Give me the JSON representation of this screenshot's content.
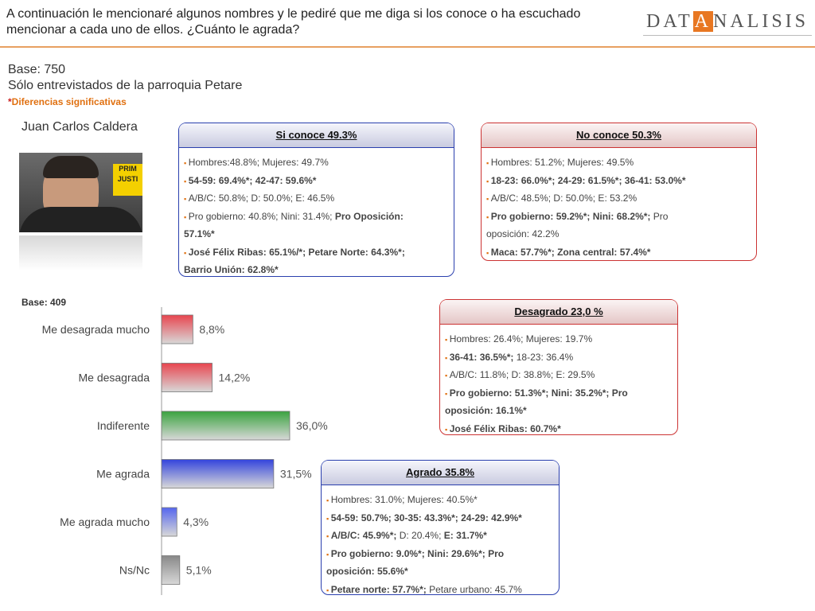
{
  "header": {
    "question": "A continuación le mencionaré algunos nombres y le pediré que me diga si los conoce o ha escuchado mencionar a cada uno de ellos. ¿Cuánto le agrada?",
    "logo_pre": "DAT",
    "logo_hl": "A",
    "logo_post": "NALISIS"
  },
  "base_info": {
    "base": "Base: 750",
    "scope": "Sólo entrevistados de la parroquia Petare",
    "note_star": "*",
    "note": "Diferencias significativas"
  },
  "person": {
    "name": "Juan Carlos Caldera",
    "sign_text": "PRIM JUSTI"
  },
  "boxes": {
    "si_conoce": {
      "title": "Si conoce 49.3%",
      "l1": "Hombres:48.8%; Mujeres: 49.7%",
      "l2": "54-59: 69.4%*; 42-47: 59.6%*",
      "l3": "A/B/C: 50.8%; D: 50.0%; E: 46.5%",
      "l4a": "Pro gobierno: 40.8%; Nini: 31.4%; ",
      "l4b": "Pro Oposición:",
      "l5": "57.1%*",
      "l6": "José Félix Ribas: 65.1%/*; Petare Norte: 64.3%*;",
      "l7": "Barrio Unión: 62.8%*"
    },
    "no_conoce": {
      "title": "No conoce 50.3%",
      "l1": "Hombres: 51.2%; Mujeres: 49.5%",
      "l2": "18-23: 66.0%*; 24-29: 61.5%*; 36-41: 53.0%*",
      "l3": "A/B/C: 48.5%; D: 50.0%; E: 53.2%",
      "l4a": "Pro gobierno: 59.2%*; Nini: 68.2%*;",
      "l4b": " Pro",
      "l5": "oposición: 42.2%",
      "l6": "Maca: 57.7%*; Zona central: 57.4%*"
    },
    "desagrado": {
      "title": "Desagrado 23,0 %",
      "l1": "Hombres: 26.4%; Mujeres: 19.7%",
      "l2a": "36-41: 36.5%*;",
      "l2b": " 18-23: 36.4%",
      "l3": "A/B/C: 11.8%; D: 38.8%; E: 29.5%",
      "l4": "Pro gobierno: 51.3%*; Nini: 35.2%*; Pro",
      "l5": "oposición: 16.1%*",
      "l6": "José Félix Ribas: 60.7%*"
    },
    "agrado": {
      "title": "Agrado 35.8%",
      "l1": "Hombres: 31.0%; Mujeres: 40.5%*",
      "l2": "54-59: 50.7%; 30-35: 43.3%*; 24-29: 42.9%*",
      "l3a": "A/B/C: 45.9%*;",
      "l3b": " D: 20.4%; ",
      "l3c": "E: 31.7%*",
      "l4": "Pro gobierno: 9.0%*; Nini: 29.6%*; Pro",
      "l5": "oposición: 55.6%*",
      "l6a": "Petare norte: 57.7%*;",
      "l6b": " Petare urbano: 45.7%"
    }
  },
  "chart_data": {
    "type": "bar",
    "orientation": "horizontal",
    "base_label": "Base: 409",
    "categories": [
      "Me desagrada mucho",
      "Me desagrada",
      "Indiferente",
      "Me agrada",
      "Me agrada mucho",
      "Ns/Nc"
    ],
    "values": [
      8.8,
      14.2,
      36.0,
      31.5,
      4.3,
      5.1
    ],
    "value_labels": [
      "8,8%",
      "14,2%",
      "36,0%",
      "31,5%",
      "4,3%",
      "5,1%"
    ],
    "colors": [
      "#e8454f",
      "#e8454f",
      "#3aa33f",
      "#3344dd",
      "#5566ee",
      "#888888"
    ],
    "xlim": [
      0,
      36.0
    ],
    "grid": false
  }
}
